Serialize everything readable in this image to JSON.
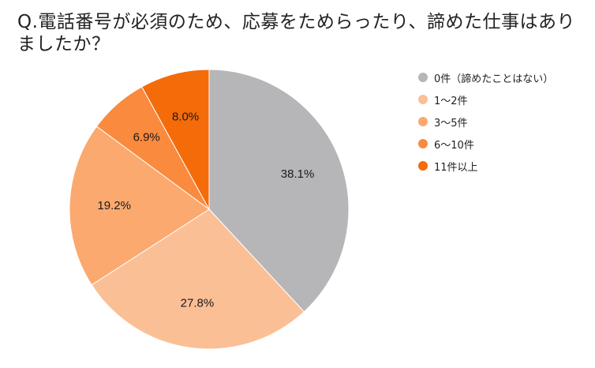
{
  "title": "Q.電話番号が必須のため、応募をためらったり、諦めた仕事はありましたか？",
  "chart_data": {
    "type": "pie",
    "categories": [
      "0件（諦めたことはない）",
      "1〜2件",
      "3〜5件",
      "6〜10件",
      "11件以上"
    ],
    "values": [
      38.1,
      27.8,
      19.2,
      6.9,
      8.0
    ],
    "value_labels": [
      "38.1%",
      "27.8%",
      "19.2%",
      "6.9%",
      "8.0%"
    ],
    "colors": [
      "#b6b5b8",
      "#fbbf96",
      "#fba96e",
      "#fa8a3e",
      "#f46b0a"
    ],
    "legend_position": "right",
    "start_angle": "top",
    "direction": "clockwise"
  }
}
